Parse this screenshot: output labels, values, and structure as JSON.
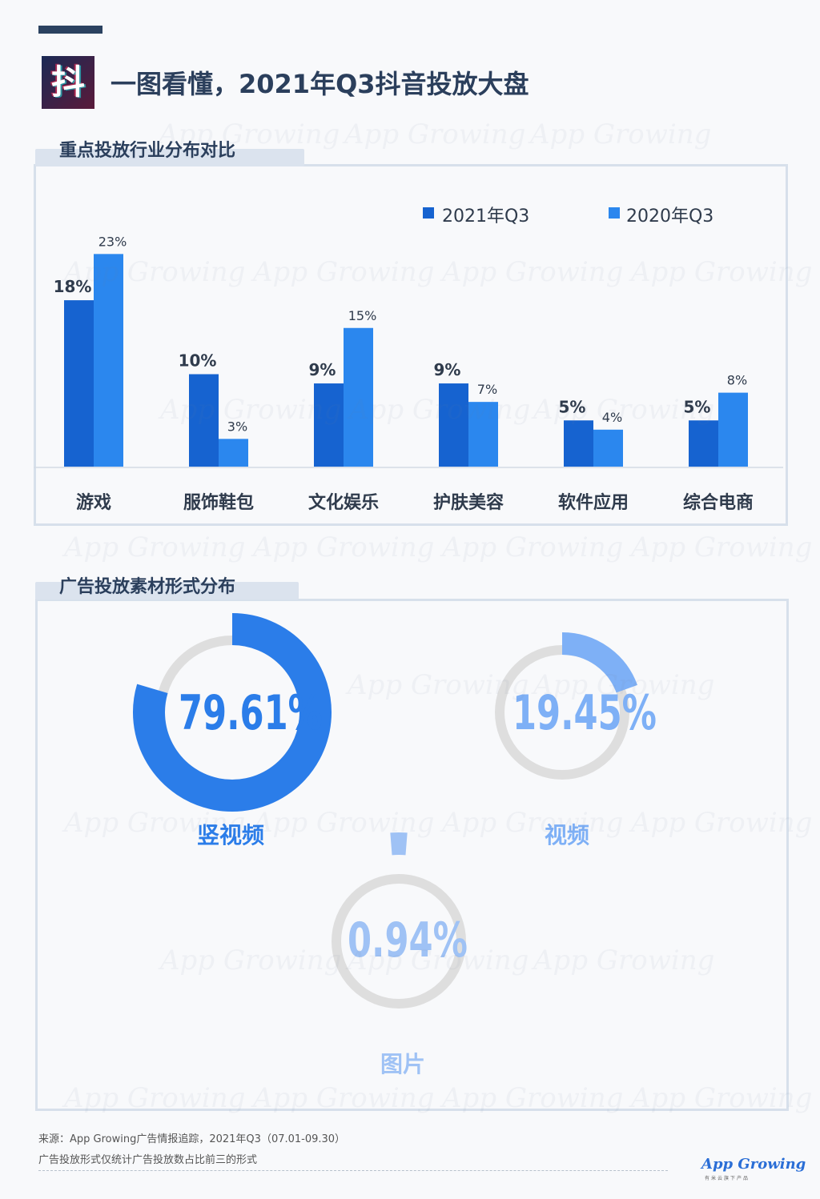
{
  "header": {
    "logo_char": "抖",
    "title": "一图看懂，2021年Q3抖音投放大盘"
  },
  "section1": {
    "title": "重点投放行业分布对比"
  },
  "section2": {
    "title": "广告投放素材形式分布"
  },
  "watermark": "App Growing",
  "colors": {
    "series1": "#1663d0",
    "series2": "#2b87ee",
    "video": "#7eb0f6",
    "image": "#9fc2f5",
    "track": "#dedede",
    "accent": "#2b3f5c"
  },
  "chart_data": [
    {
      "type": "bar",
      "categories": [
        "游戏",
        "服饰鞋包",
        "文化娱乐",
        "护肤美容",
        "软件应用",
        "综合电商"
      ],
      "series": [
        {
          "name": "2021年Q3",
          "values": [
            18,
            10,
            9,
            9,
            5,
            5
          ],
          "labels": [
            "18%",
            "10%",
            "9%",
            "9%",
            "5%",
            "5%"
          ]
        },
        {
          "name": "2020年Q3",
          "values": [
            23,
            3,
            15,
            7,
            4,
            8
          ],
          "labels": [
            "23%",
            "3%",
            "15%",
            "7%",
            "4%",
            "8%"
          ]
        }
      ],
      "ylim": [
        0,
        23
      ],
      "legend": "top-right",
      "grid": false
    },
    {
      "type": "pie",
      "style": "donut",
      "slices": [
        {
          "name": "竖视频",
          "value": 79.61,
          "label": "79.61%"
        },
        {
          "name": "视频",
          "value": 19.45,
          "label": "19.45%"
        },
        {
          "name": "图片",
          "value": 0.94,
          "label": "0.94%"
        }
      ]
    }
  ],
  "footer": {
    "source": "来源：App Growing广告情报追踪，2021年Q3（07.01-09.30）",
    "note": "广告投放形式仅统计广告投放数占比前三的形式",
    "brand": "App Growing",
    "brand_sub": "有米云旗下产品"
  }
}
